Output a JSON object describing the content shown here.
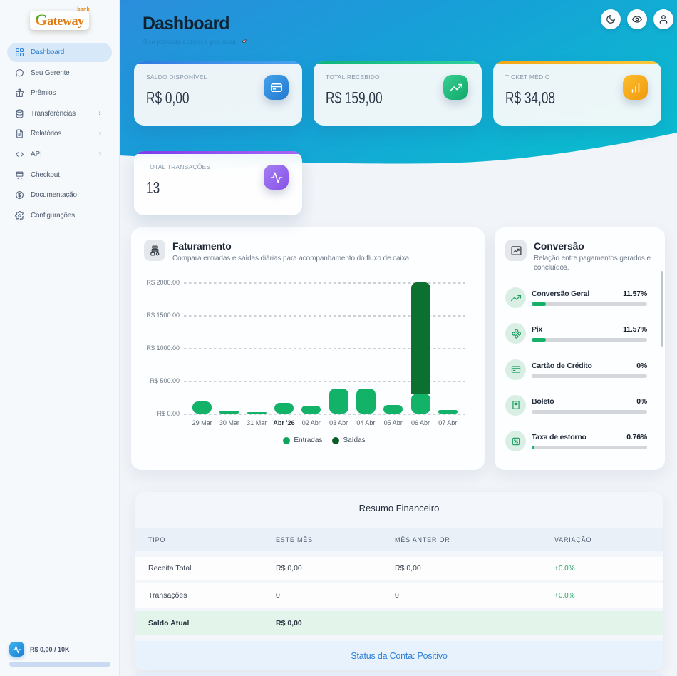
{
  "brand": {
    "g": "G",
    "rest": "ateway",
    "badge": "bank"
  },
  "sidebar": {
    "items": [
      {
        "label": "Dashboard",
        "icon": "grid-icon",
        "active": true,
        "chevron": false
      },
      {
        "label": "Seu Gerente",
        "icon": "chat-icon",
        "active": false,
        "chevron": false
      },
      {
        "label": "Prêmios",
        "icon": "gift-icon",
        "active": false,
        "chevron": false
      },
      {
        "label": "Transferências",
        "icon": "database-icon",
        "active": false,
        "chevron": true
      },
      {
        "label": "Relatórios",
        "icon": "file-icon",
        "active": false,
        "chevron": true
      },
      {
        "label": "API",
        "icon": "code-icon",
        "active": false,
        "chevron": true
      },
      {
        "label": "Checkout",
        "icon": "storefront-icon",
        "active": false,
        "chevron": false
      },
      {
        "label": "Documentação",
        "icon": "dollar-circle-icon",
        "active": false,
        "chevron": false
      },
      {
        "label": "Configurações",
        "icon": "gear-icon",
        "active": false,
        "chevron": false
      }
    ],
    "chevron_glyph": "›",
    "usage": {
      "label": "R$ 0,00 / 10K",
      "icon": "activity-icon",
      "progress_pct": 0
    }
  },
  "header": {
    "title": "Dashboard",
    "subtitle": "Sua jornada começa por aqui",
    "subtitle_icon": "rocket-icon",
    "actions": [
      {
        "icon": "moon-icon"
      },
      {
        "icon": "eye-icon"
      },
      {
        "icon": "user-icon"
      }
    ]
  },
  "stats": [
    {
      "label": "SALDO DISPONÍVEL",
      "value": "R$ 0,00",
      "icon": "credit-card-icon",
      "accent": "linear-gradient(90deg,#2f7be0,#4aa3ef)",
      "icon_bg": "linear-gradient(135deg,#43a3ea,#2578d0)"
    },
    {
      "label": "TOTAL RECEBIDO",
      "value": "R$ 159,00",
      "icon": "trending-up-icon",
      "accent": "linear-gradient(90deg,#0fb37a,#2fd1a0)",
      "icon_bg": "linear-gradient(135deg,#37cf92,#10a869)"
    },
    {
      "label": "TICKET MÉDIO",
      "value": "R$ 34,08",
      "icon": "bar-chart-icon",
      "accent": "linear-gradient(90deg,#f2a614,#fbc93e)",
      "icon_bg": "linear-gradient(135deg,#fcbe2d,#f0990d)"
    },
    {
      "label": "TOTAL TRANSAÇÕES",
      "value": "13",
      "icon": "activity-icon",
      "accent": "linear-gradient(90deg,#7c3bec,#a865f6)",
      "icon_bg": "linear-gradient(135deg,#a57ff3,#8752e8)"
    }
  ],
  "billing": {
    "title": "Faturamento",
    "subtitle": "Compara entradas e saídas diárias para acompanhamento do fluxo de caixa.",
    "icon": "cash-register-icon"
  },
  "chart_data": {
    "type": "bar",
    "stacked": true,
    "categories": [
      "29 Mar",
      "30 Mar",
      "31 Mar",
      "Abr '26",
      "02 Abr",
      "03 Abr",
      "04 Abr",
      "05 Abr",
      "06 Abr",
      "07 Abr"
    ],
    "bold_category": "Abr '26",
    "series": [
      {
        "name": "Entradas",
        "color": "#12b269",
        "values": [
          185,
          40,
          18,
          160,
          115,
          380,
          380,
          135,
          300,
          50
        ]
      },
      {
        "name": "Saídas",
        "color": "#0c7130",
        "values": [
          0,
          0,
          0,
          0,
          0,
          0,
          0,
          0,
          1700,
          0
        ]
      }
    ],
    "legend_colors": {
      "Entradas": "#10a45c",
      "Saídas": "#0a5c26"
    },
    "ylabel_prefix": "R$",
    "yticks": [
      "R$ 2000.00",
      "R$ 1500.00",
      "R$ 1000.00",
      "R$ 500.00",
      "R$ 0.00"
    ],
    "ymax": 2000,
    "title": "Faturamento",
    "xlabel": "",
    "ylabel": "R$",
    "grid": "dashed"
  },
  "conversion": {
    "title": "Conversão",
    "subtitle": "Relação entre pagamentos gerados e concluídos.",
    "icon": "chart-up-icon",
    "items": [
      {
        "label": "Conversão Geral",
        "pct": "11.57%",
        "fill_pct": 12.4,
        "icon": "trending-up-icon"
      },
      {
        "label": "Pix",
        "pct": "11.57%",
        "fill_pct": 12.4,
        "icon": "pix-icon"
      },
      {
        "label": "Cartão de Crédito",
        "pct": "0%",
        "fill_pct": 0,
        "icon": "credit-card-icon"
      },
      {
        "label": "Boleto",
        "pct": "0%",
        "fill_pct": 0,
        "icon": "boleto-icon"
      },
      {
        "label": "Taxa de estorno",
        "pct": "0.76%",
        "fill_pct": 2.4,
        "icon": "percent-grid-icon"
      }
    ]
  },
  "summary": {
    "title": "Resumo Financeiro",
    "columns": [
      "TIPO",
      "ESTE MÊS",
      "MÊS ANTERIOR",
      "VARIAÇÃO"
    ],
    "rows": [
      {
        "tipo": "Receita Total",
        "este_mes": "R$ 0,00",
        "mes_anterior": "R$ 0,00",
        "variacao": "+0.0%"
      },
      {
        "tipo": "Transações",
        "este_mes": "0",
        "mes_anterior": "0",
        "variacao": "+0.0%"
      },
      {
        "tipo": "Saldo Atual",
        "este_mes": "R$ 0,00",
        "mes_anterior": "",
        "variacao": ""
      }
    ],
    "footer": "Status da Conta: Positivo"
  }
}
